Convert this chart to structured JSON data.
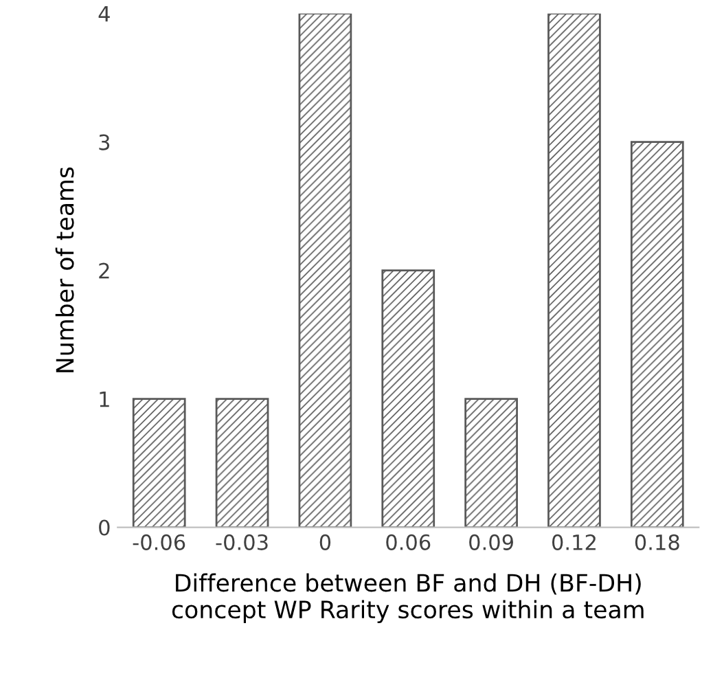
{
  "chart_data": {
    "type": "bar",
    "xlabel": "Difference between BF and DH (BF-DH)\nconcept WP Rarity scores within a team",
    "ylabel": "Number of teams",
    "categories": [
      "-0.06",
      "-0.03",
      "0",
      "0.06",
      "0.09",
      "0.12",
      "0.18"
    ],
    "values": [
      1,
      1,
      4,
      2,
      1,
      4,
      3
    ],
    "color": "#595959",
    "ylim": [
      0,
      4
    ],
    "yticks": [
      0,
      1,
      2,
      3,
      4
    ],
    "grid": false
  }
}
